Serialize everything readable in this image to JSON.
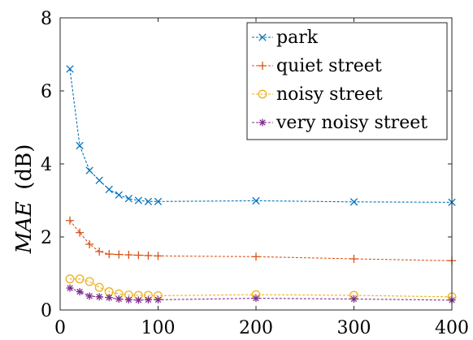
{
  "chart_data": {
    "type": "line",
    "xlabel": "",
    "ylabel": "MAE (dB)",
    "ylabel_italic_part": "MAE",
    "ylabel_unit_part": "(dB)",
    "xlim": [
      0,
      400
    ],
    "ylim": [
      0,
      8
    ],
    "xticks": [
      0,
      100,
      200,
      300,
      400
    ],
    "yticks": [
      0,
      2,
      4,
      6,
      8
    ],
    "grid": false,
    "legend_position": "top-right",
    "series": [
      {
        "name": "park",
        "color": "#0072BD",
        "marker": "x",
        "x": [
          10,
          20,
          30,
          40,
          50,
          60,
          70,
          80,
          90,
          100,
          200,
          300,
          400
        ],
        "y": [
          6.6,
          4.5,
          3.82,
          3.55,
          3.3,
          3.15,
          3.05,
          3.0,
          2.97,
          2.97,
          2.99,
          2.96,
          2.95
        ]
      },
      {
        "name": "quiet street",
        "color": "#D95319",
        "marker": "+",
        "x": [
          10,
          20,
          30,
          40,
          50,
          60,
          70,
          80,
          90,
          100,
          200,
          300,
          400
        ],
        "y": [
          2.45,
          2.12,
          1.8,
          1.6,
          1.53,
          1.52,
          1.51,
          1.5,
          1.49,
          1.48,
          1.46,
          1.4,
          1.35
        ]
      },
      {
        "name": "noisy street",
        "color": "#EDB120",
        "marker": "o",
        "x": [
          10,
          20,
          30,
          40,
          50,
          60,
          70,
          80,
          90,
          100,
          200,
          300,
          400
        ],
        "y": [
          0.85,
          0.85,
          0.78,
          0.62,
          0.5,
          0.44,
          0.41,
          0.4,
          0.4,
          0.39,
          0.42,
          0.4,
          0.36
        ]
      },
      {
        "name": "very noisy street",
        "color": "#7E2F8E",
        "marker": "*",
        "x": [
          10,
          20,
          30,
          40,
          50,
          60,
          70,
          80,
          90,
          100,
          200,
          300,
          400
        ],
        "y": [
          0.6,
          0.5,
          0.38,
          0.36,
          0.34,
          0.3,
          0.28,
          0.27,
          0.28,
          0.28,
          0.32,
          0.3,
          0.27
        ]
      }
    ]
  }
}
